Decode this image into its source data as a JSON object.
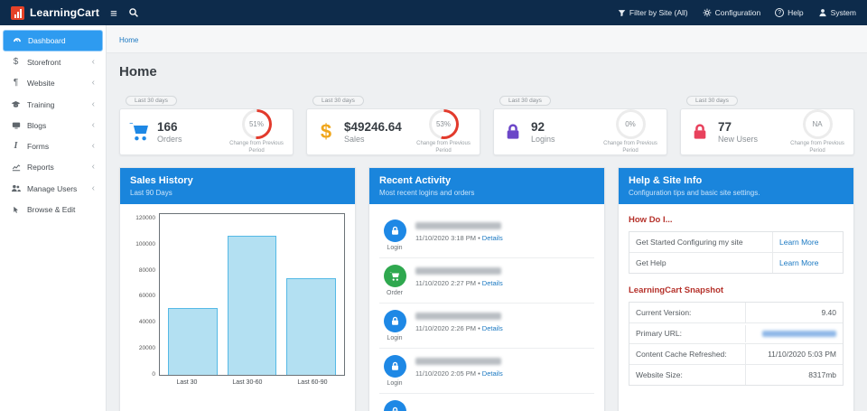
{
  "topbar": {
    "brand": "LearningCart",
    "filter_label": "Filter by Site (All)",
    "configuration_label": "Configuration",
    "help_label": "Help",
    "system_label": "System"
  },
  "sidebar": {
    "items": [
      {
        "label": "Dashboard"
      },
      {
        "label": "Storefront"
      },
      {
        "label": "Website"
      },
      {
        "label": "Training"
      },
      {
        "label": "Blogs"
      },
      {
        "label": "Forms"
      },
      {
        "label": "Reports"
      },
      {
        "label": "Manage Users"
      },
      {
        "label": "Browse & Edit"
      }
    ]
  },
  "breadcrumb": "Home",
  "page_title": "Home",
  "stat_cards": [
    {
      "period": "Last 30 days",
      "value": "166",
      "label": "Orders",
      "gauge_text": "51%",
      "gauge_pct": 51,
      "caption": "Change from Previous Period",
      "accent": "#1e88e5"
    },
    {
      "period": "Last 30 days",
      "value": "$49246.64",
      "label": "Sales",
      "gauge_text": "53%",
      "gauge_pct": 53,
      "caption": "Change from Previous Period",
      "accent": "#f0a61c"
    },
    {
      "period": "Last 30 days",
      "value": "92",
      "label": "Logins",
      "gauge_text": "0%",
      "gauge_pct": 0,
      "caption": "Change from Previous Period",
      "accent": "#6b46c8"
    },
    {
      "period": "Last 30 days",
      "value": "77",
      "label": "New Users",
      "gauge_text": "NA",
      "gauge_pct": 0,
      "caption": "Change from Previous Period",
      "accent": "#e8415c"
    }
  ],
  "gauge_red": "#e23a2c",
  "sales_panel": {
    "title": "Sales History",
    "subtitle": "Last 90 Days"
  },
  "chart_data": {
    "type": "bar",
    "title": "Sales History",
    "categories": [
      "Last 30",
      "Last 30-60",
      "Last 60-90"
    ],
    "values": [
      50000,
      104000,
      72000
    ],
    "xlabel": "",
    "ylabel": "",
    "ylim": [
      0,
      120000
    ],
    "yticks": [
      0,
      20000,
      40000,
      60000,
      80000,
      100000,
      120000
    ],
    "grid": false,
    "bar_fill": "#b3e0f2",
    "bar_border": "#55b9e6"
  },
  "activity_panel": {
    "title": "Recent Activity",
    "subtitle": "Most recent logins and orders",
    "items": [
      {
        "type": "Login",
        "datetime": "11/10/2020 3:18 PM",
        "details": "Details"
      },
      {
        "type": "Order",
        "datetime": "11/10/2020 2:27 PM",
        "details": "Details"
      },
      {
        "type": "Login",
        "datetime": "11/10/2020 2:26 PM",
        "details": "Details"
      },
      {
        "type": "Login",
        "datetime": "11/10/2020 2:05 PM",
        "details": "Details"
      }
    ]
  },
  "help_panel": {
    "title": "Help & Site Info",
    "subtitle": "Configuration tips and basic site settings.",
    "how_heading": "How Do I...",
    "how_rows": [
      {
        "label": "Get Started Configuring my site",
        "link": "Learn More"
      },
      {
        "label": "Get Help",
        "link": "Learn More"
      }
    ],
    "snapshot_heading": "LearningCart Snapshot",
    "snapshot_rows": [
      {
        "label": "Current Version:",
        "value": "9.40"
      },
      {
        "label": "Primary URL:",
        "value": ""
      },
      {
        "label": "Content Cache Refreshed:",
        "value": "11/10/2020 5:03 PM"
      },
      {
        "label": "Website Size:",
        "value": "8317mb"
      }
    ]
  }
}
